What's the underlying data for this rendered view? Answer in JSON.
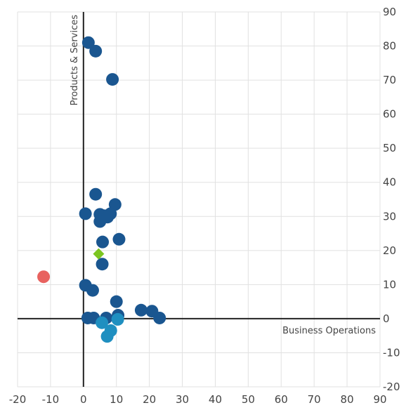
{
  "chart_data": {
    "type": "scatter",
    "xlabel": "Business Operations",
    "ylabel": "Products & Services",
    "xlim": [
      -20,
      90
    ],
    "ylim": [
      -20,
      90
    ],
    "xticks": [
      "-20",
      "-10",
      "0",
      "10",
      "20",
      "30",
      "40",
      "50",
      "60",
      "70",
      "80",
      "90"
    ],
    "yticks": [
      "90",
      "80",
      "70",
      "60",
      "50",
      "40",
      "30",
      "20",
      "10",
      "0",
      "-10",
      "-20"
    ],
    "grid": true,
    "series": [
      {
        "marker": "circle",
        "color": "#1a5690",
        "points": [
          {
            "x": 1.5,
            "y": 81
          },
          {
            "x": 3.7,
            "y": 78.5
          },
          {
            "x": 8.8,
            "y": 70.2
          },
          {
            "x": 3.7,
            "y": 36.5
          },
          {
            "x": 9.6,
            "y": 33.5
          },
          {
            "x": 0.6,
            "y": 30.8
          },
          {
            "x": 5.0,
            "y": 30.6
          },
          {
            "x": 6.2,
            "y": 30.2
          },
          {
            "x": 8.2,
            "y": 30.8
          },
          {
            "x": 7.3,
            "y": 29.8
          },
          {
            "x": 5.0,
            "y": 28.5
          },
          {
            "x": 5.8,
            "y": 22.5
          },
          {
            "x": 10.8,
            "y": 23.3
          },
          {
            "x": 5.7,
            "y": 16.0
          },
          {
            "x": 0.6,
            "y": 9.8
          },
          {
            "x": 2.8,
            "y": 8.3
          },
          {
            "x": 10.0,
            "y": 5.0
          },
          {
            "x": 17.5,
            "y": 2.5
          },
          {
            "x": 20.8,
            "y": 2.2
          },
          {
            "x": 23.1,
            "y": 0.2
          },
          {
            "x": 1.3,
            "y": 0.2
          },
          {
            "x": 3.1,
            "y": 0.2
          },
          {
            "x": 6.9,
            "y": 0.2
          },
          {
            "x": 10.5,
            "y": 1.0
          }
        ]
      },
      {
        "marker": "circle",
        "color": "#1f8fc0",
        "points": [
          {
            "x": 5.6,
            "y": -1.2
          },
          {
            "x": 10.4,
            "y": -0.2
          },
          {
            "x": 8.3,
            "y": -3.5
          },
          {
            "x": 7.2,
            "y": -5.2
          }
        ]
      },
      {
        "marker": "circle",
        "color": "#e8625f",
        "points": [
          {
            "x": -12.1,
            "y": 12.3
          }
        ]
      },
      {
        "marker": "diamond",
        "color": "#7cc520",
        "points": [
          {
            "x": 4.6,
            "y": 19.0
          }
        ]
      }
    ]
  },
  "colors": {
    "grid": "#e1e1e1",
    "axis": "#222222",
    "tick_text": "#555555"
  }
}
